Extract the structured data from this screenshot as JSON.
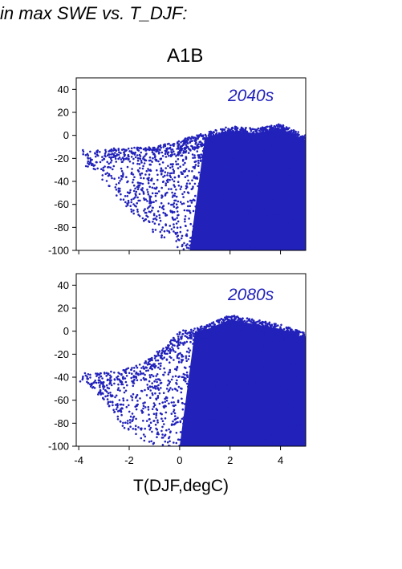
{
  "figure": {
    "title": "in max SWE vs. T_DJF:",
    "scenario": "A1B",
    "xlabel": "T(DJF,degC)"
  },
  "colors": {
    "points": "#2222bb",
    "label": "#2222bb",
    "axes": "#000000"
  },
  "chart_data": [
    {
      "type": "scatter",
      "panel_label": "2040s",
      "xlim": [
        -4.1,
        5.0
      ],
      "ylim": [
        -100,
        50
      ],
      "yticks": [
        40,
        20,
        0,
        -20,
        -40,
        -60,
        -80,
        -100
      ],
      "xticks": [
        -4,
        -2,
        0,
        2,
        4
      ],
      "x_tick_labels_shown": false,
      "point_cloud": {
        "description_of_density": "dense cloud spanning x 1 to 5 and y -100 to 10, sparse tail toward x -4 near y -20 to -60",
        "approx_envelope": [
          {
            "x": -4.0,
            "ymin": -22,
            "ymax": -12
          },
          {
            "x": -3.0,
            "ymin": -40,
            "ymax": -12
          },
          {
            "x": -2.0,
            "ymin": -65,
            "ymax": -10
          },
          {
            "x": -1.0,
            "ymin": -85,
            "ymax": -10
          },
          {
            "x": 0.0,
            "ymin": -100,
            "ymax": -4
          },
          {
            "x": 1.0,
            "ymin": -100,
            "ymax": 2
          },
          {
            "x": 2.0,
            "ymin": -100,
            "ymax": 8
          },
          {
            "x": 3.0,
            "ymin": -100,
            "ymax": 6
          },
          {
            "x": 4.0,
            "ymin": -100,
            "ymax": 10
          },
          {
            "x": 5.0,
            "ymin": -100,
            "ymax": 0
          }
        ]
      }
    },
    {
      "type": "scatter",
      "panel_label": "2080s",
      "xlim": [
        -4.1,
        5.0
      ],
      "ylim": [
        -100,
        50
      ],
      "yticks": [
        40,
        20,
        0,
        -20,
        -40,
        -60,
        -80,
        -100
      ],
      "xticks": [
        -4,
        -2,
        0,
        2,
        4
      ],
      "x_tick_labels_shown": true,
      "point_cloud": {
        "description_of_density": "dense cloud spanning x -1 to 5 and y -100 to 15, sparse tail toward x -4 near y -35 to -60",
        "approx_envelope": [
          {
            "x": -4.0,
            "ymin": -40,
            "ymax": -35
          },
          {
            "x": -3.0,
            "ymin": -60,
            "ymax": -36
          },
          {
            "x": -2.0,
            "ymin": -90,
            "ymax": -32
          },
          {
            "x": -1.0,
            "ymin": -100,
            "ymax": -20
          },
          {
            "x": 0.0,
            "ymin": -100,
            "ymax": 0
          },
          {
            "x": 1.0,
            "ymin": -100,
            "ymax": 5
          },
          {
            "x": 2.0,
            "ymin": -100,
            "ymax": 14
          },
          {
            "x": 3.0,
            "ymin": -100,
            "ymax": 10
          },
          {
            "x": 4.0,
            "ymin": -100,
            "ymax": 6
          },
          {
            "x": 5.0,
            "ymin": -100,
            "ymax": -2
          }
        ]
      }
    }
  ]
}
